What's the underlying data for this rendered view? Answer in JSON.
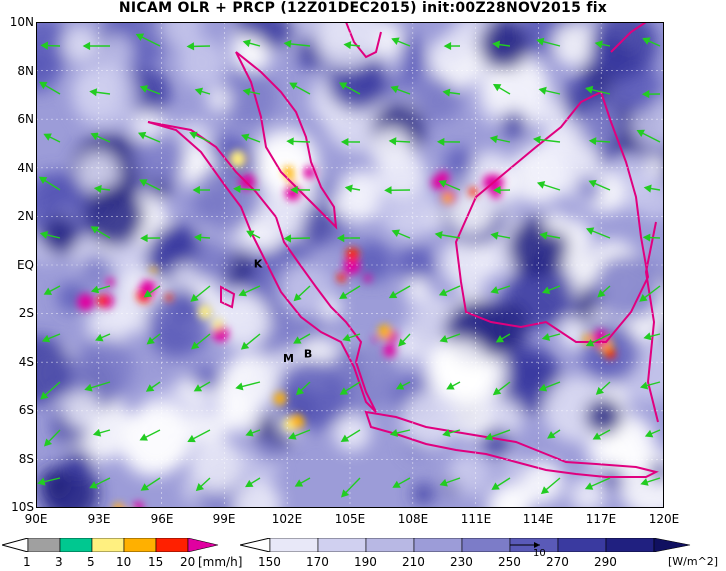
{
  "title": "NICAM OLR + PRCP (12Z01DEC2015) init:00Z28NOV2015 fix",
  "map": {
    "lat_labels": [
      "10N",
      "8N",
      "6N",
      "4N",
      "2N",
      "EQ",
      "2S",
      "4S",
      "6S",
      "8S",
      "10S"
    ],
    "lon_labels": [
      "90E",
      "93E",
      "96E",
      "99E",
      "102E",
      "105E",
      "108E",
      "111E",
      "114E",
      "117E",
      "120E"
    ],
    "lon_range": [
      90,
      120
    ],
    "lat_range": [
      -10,
      10
    ],
    "station_labels": [
      {
        "text": "K",
        "lon": 100.4,
        "lat": -0.1
      },
      {
        "text": "M",
        "lon": 101.8,
        "lat": -4.0
      },
      {
        "text": "B",
        "lon": 102.8,
        "lat": -3.8
      }
    ],
    "wind_vector_color": "#22cc22",
    "coast_color": "#e0007f"
  },
  "colorbar_prcp": {
    "levels": [
      "1",
      "3",
      "5",
      "10",
      "15",
      "20"
    ],
    "unit": "[mm/h]",
    "colors": [
      "#a0a0a0",
      "#00c890",
      "#fff080",
      "#ffb000",
      "#ff2000",
      "#e000a0"
    ]
  },
  "colorbar_olr": {
    "levels": [
      "150",
      "170",
      "190",
      "210",
      "230",
      "250",
      "270",
      "290"
    ],
    "unit": "[W/m^2]",
    "vector_ref": "10",
    "colors": [
      "#ffffff",
      "#e8e8f8",
      "#d0d0f0",
      "#b8b8e4",
      "#9c9cd8",
      "#7c7cc8",
      "#5a5ab8",
      "#3a3aa0",
      "#202080",
      "#101060"
    ]
  }
}
